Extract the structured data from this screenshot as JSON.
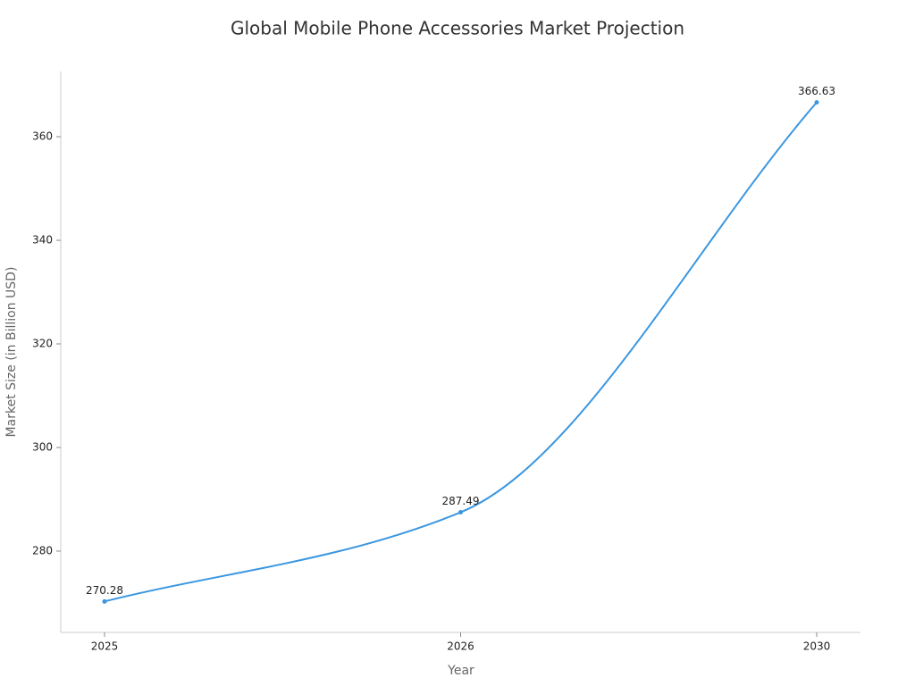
{
  "chart_data": {
    "type": "line",
    "title": "Global Mobile Phone Accessories Market Projection",
    "x_label": "Year",
    "y_label": "Market Size (in Billion USD)",
    "categories": [
      "2025",
      "2026",
      "2030"
    ],
    "values": [
      270.28,
      287.49,
      366.63
    ],
    "color": "#3a96e0",
    "ylim": [
      264.3,
      372.6
    ],
    "yticks": [
      280,
      300,
      320,
      340,
      360
    ],
    "grid": false
  }
}
